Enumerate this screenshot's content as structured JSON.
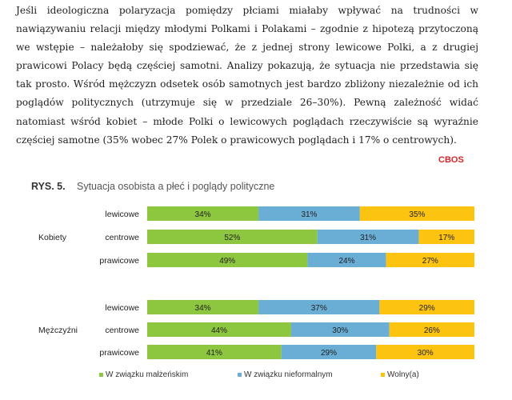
{
  "paragraph": "Jeśli ideologiczna polaryzacja pomiędzy płciami miałaby wpływać na trudności w nawiązywaniu relacji między młodymi Polkami i Polakami – zgodnie z hipotezą przytoczoną we wstępie – należałoby się spodziewać, że z jednej strony lewicowe Polki, a z drugiej prawicowi Polacy będą częściej samotni. Analizy pokazują, że sytuacja nie przedstawia się tak prosto. Wśród mężczyzn odsetek osób samotnych jest bardzo zbliżony niezależnie od ich poglądów politycznych (utrzymuje się w przedziale 26–30%). Pewną zależność widać natomiast wśród kobiet – młode Polki o lewicowych poglądach rzeczywiście są wyraźnie częściej samotne (35% wobec 27% Polek o prawicowych poglądach i 17% o centrowych).",
  "source": "CBOS",
  "figure_number": "RYS. 5.",
  "figure_title": "Sytuacja osobista a płeć i poglądy polityczne",
  "colors": {
    "married": "#8dc63f",
    "informal": "#6aaed6",
    "single": "#fcc311"
  },
  "chart_data": {
    "type": "bar",
    "orientation": "horizontal-stacked-100",
    "title": "Sytuacja osobista a płeć i poglądy polityczne",
    "legend_position": "bottom",
    "groups": [
      {
        "name": "Kobiety",
        "rows": [
          {
            "category": "lewicowe",
            "values": [
              34,
              31,
              35
            ]
          },
          {
            "category": "centrowe",
            "values": [
              52,
              31,
              17
            ]
          },
          {
            "category": "prawicowe",
            "values": [
              49,
              24,
              27
            ]
          }
        ]
      },
      {
        "name": "Mężczyźni",
        "rows": [
          {
            "category": "lewicowe",
            "values": [
              34,
              37,
              29
            ]
          },
          {
            "category": "centrowe",
            "values": [
              44,
              30,
              26
            ]
          },
          {
            "category": "prawicowe",
            "values": [
              41,
              29,
              30
            ]
          }
        ]
      }
    ],
    "series": [
      {
        "name": "W związku małżeńskim"
      },
      {
        "name": "W związku nieformalnym"
      },
      {
        "name": "Wolny(a)"
      }
    ]
  }
}
